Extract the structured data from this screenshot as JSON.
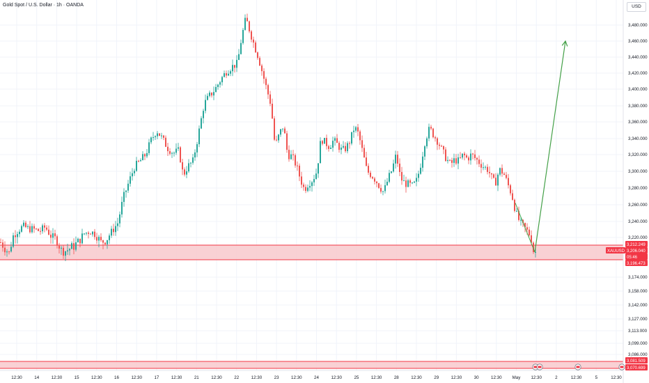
{
  "header": {
    "title": "Gold Spot / U.S. Dollar · 1h · OANDA",
    "currency": "USD"
  },
  "colors": {
    "up": "#26a69a",
    "down": "#ef5350",
    "zone_fill": "#f8c9cc",
    "zone_line": "#f23645",
    "projection": "#43a047",
    "price_tag": "#f23645"
  },
  "y_axis": {
    "ticks": [
      "3,480.000",
      "3,460.000",
      "3,440.000",
      "3,420.000",
      "3,400.000",
      "3,380.000",
      "3,360.000",
      "3,340.000",
      "3,320.000",
      "3,300.000",
      "3,280.000",
      "3,260.000",
      "3,240.000",
      "3,220.000",
      "3,174.000",
      "3,158.000",
      "3,142.000",
      "3,127.000",
      "3,113.000",
      "3,099.000",
      "3,086.000"
    ]
  },
  "x_axis": {
    "ticks": [
      "12:30",
      "14",
      "12:30",
      "15",
      "12:30",
      "16",
      "12:30",
      "17",
      "12:30",
      "21",
      "12:30",
      "22",
      "12:30",
      "23",
      "12:30",
      "24",
      "12:30",
      "25",
      "12:30",
      "28",
      "12:30",
      "29",
      "12:30",
      "30",
      "12:30",
      "May",
      "12:30",
      "2",
      "12:30",
      "5",
      "12:30"
    ]
  },
  "price_tags": {
    "symbol": "XAUUSD",
    "upper": "3,212.249",
    "last": "3,206.040",
    "countdown": "05:46",
    "lower": "3,196.473",
    "zone2_upper": "3,081.509",
    "zone2_lower": "3,070.699"
  },
  "chart_data": {
    "type": "candlestick",
    "title": "Gold Spot / U.S. Dollar · 1h · OANDA",
    "currency": "USD",
    "close_path": [
      [
        0,
        3215
      ],
      [
        6,
        3210
      ],
      [
        12,
        3205
      ],
      [
        18,
        3222
      ],
      [
        24,
        3228
      ],
      [
        32,
        3234
      ],
      [
        40,
        3231
      ],
      [
        48,
        3230
      ],
      [
        56,
        3228
      ],
      [
        64,
        3233
      ],
      [
        72,
        3222
      ],
      [
        80,
        3218
      ],
      [
        88,
        3206
      ],
      [
        96,
        3208
      ],
      [
        104,
        3211
      ],
      [
        112,
        3216
      ],
      [
        120,
        3225
      ],
      [
        128,
        3228
      ],
      [
        136,
        3224
      ],
      [
        144,
        3215
      ],
      [
        152,
        3218
      ],
      [
        160,
        3228
      ],
      [
        168,
        3238
      ],
      [
        176,
        3268
      ],
      [
        184,
        3287
      ],
      [
        192,
        3305
      ],
      [
        200,
        3312
      ],
      [
        208,
        3320
      ],
      [
        216,
        3338
      ],
      [
        224,
        3350
      ],
      [
        232,
        3340
      ],
      [
        240,
        3328
      ],
      [
        248,
        3322
      ],
      [
        256,
        3325
      ],
      [
        262,
        3295
      ],
      [
        268,
        3305
      ],
      [
        276,
        3312
      ],
      [
        284,
        3345
      ],
      [
        292,
        3382
      ],
      [
        300,
        3392
      ],
      [
        308,
        3400
      ],
      [
        316,
        3412
      ],
      [
        324,
        3422
      ],
      [
        332,
        3428
      ],
      [
        340,
        3432
      ],
      [
        346,
        3465
      ],
      [
        352,
        3488
      ],
      [
        358,
        3472
      ],
      [
        364,
        3455
      ],
      [
        370,
        3440
      ],
      [
        376,
        3420
      ],
      [
        382,
        3400
      ],
      [
        388,
        3382
      ],
      [
        394,
        3330
      ],
      [
        400,
        3345
      ],
      [
        406,
        3356
      ],
      [
        412,
        3320
      ],
      [
        418,
        3318
      ],
      [
        424,
        3308
      ],
      [
        430,
        3292
      ],
      [
        436,
        3278
      ],
      [
        442,
        3286
      ],
      [
        448,
        3290
      ],
      [
        454,
        3300
      ],
      [
        460,
        3340
      ],
      [
        466,
        3335
      ],
      [
        472,
        3330
      ],
      [
        478,
        3338
      ],
      [
        484,
        3332
      ],
      [
        490,
        3325
      ],
      [
        496,
        3328
      ],
      [
        502,
        3338
      ],
      [
        508,
        3354
      ],
      [
        514,
        3345
      ],
      [
        520,
        3322
      ],
      [
        526,
        3300
      ],
      [
        532,
        3296
      ],
      [
        538,
        3290
      ],
      [
        544,
        3282
      ],
      [
        550,
        3275
      ],
      [
        556,
        3290
      ],
      [
        562,
        3302
      ],
      [
        568,
        3320
      ],
      [
        574,
        3292
      ],
      [
        580,
        3286
      ],
      [
        586,
        3284
      ],
      [
        592,
        3282
      ],
      [
        598,
        3290
      ],
      [
        604,
        3312
      ],
      [
        610,
        3340
      ],
      [
        616,
        3352
      ],
      [
        622,
        3344
      ],
      [
        628,
        3336
      ],
      [
        634,
        3325
      ],
      [
        640,
        3315
      ],
      [
        646,
        3308
      ],
      [
        652,
        3314
      ],
      [
        658,
        3312
      ],
      [
        664,
        3320
      ],
      [
        670,
        3315
      ],
      [
        676,
        3320
      ],
      [
        682,
        3315
      ],
      [
        688,
        3310
      ],
      [
        694,
        3305
      ],
      [
        700,
        3302
      ],
      [
        706,
        3290
      ],
      [
        710,
        3285
      ],
      [
        716,
        3302
      ],
      [
        722,
        3298
      ],
      [
        728,
        3285
      ],
      [
        734,
        3272
      ],
      [
        740,
        3250
      ],
      [
        746,
        3238
      ],
      [
        752,
        3232
      ],
      [
        758,
        3226
      ],
      [
        764,
        3215
      ],
      [
        768,
        3206
      ]
    ],
    "projection": {
      "from": [
        768,
        3206.04
      ],
      "to": [
        812,
        3460
      ]
    },
    "zones": [
      {
        "label": "demand_zone",
        "from": 3196.473,
        "to": 3212.249
      },
      {
        "label": "lower_zone",
        "from": 3070.699,
        "to": 3081.509
      }
    ],
    "last_price": 3206.04
  }
}
